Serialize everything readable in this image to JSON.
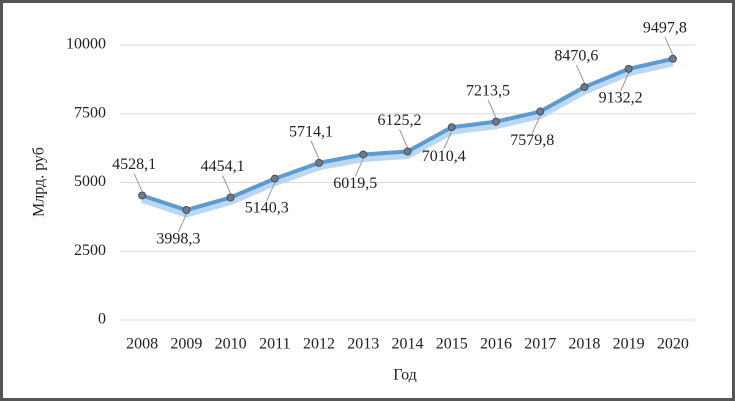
{
  "chart_data": {
    "type": "line",
    "xlabel": "Год",
    "ylabel": "Млрд. руб",
    "categories": [
      "2008",
      "2009",
      "2010",
      "2011",
      "2012",
      "2013",
      "2014",
      "2015",
      "2016",
      "2017",
      "2018",
      "2019",
      "2020"
    ],
    "series": [
      {
        "color": "#5b9bd5",
        "values": [
          4528.1,
          3998.3,
          4454.1,
          5140.3,
          5714.1,
          6019.5,
          6125.2,
          7010.4,
          7213.5,
          7579.8,
          8470.6,
          9132.2,
          9497.8
        ],
        "value_labels": [
          "4528,1",
          "3998,3",
          "4454,1",
          "5140,3",
          "5714,1",
          "6019,5",
          "6125,2",
          "7010,4",
          "7213,5",
          "7579,8",
          "8470,6",
          "9132,2",
          "9497,8"
        ]
      }
    ],
    "ylim": [
      0,
      10000
    ],
    "yticks": [
      0,
      2500,
      5000,
      7500,
      10000
    ],
    "grid": true
  }
}
